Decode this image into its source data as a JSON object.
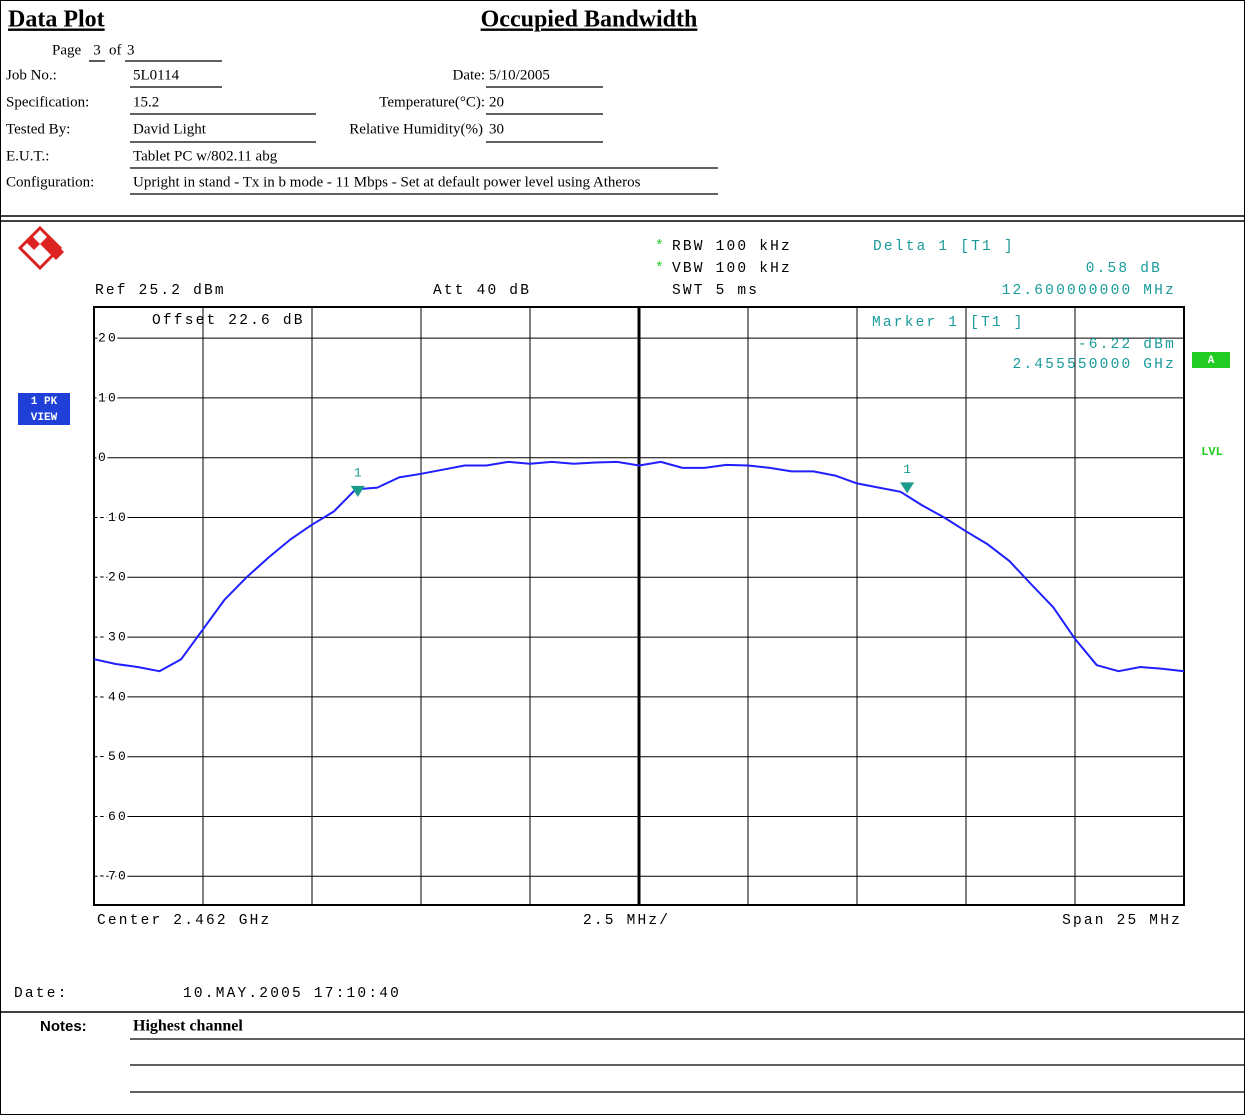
{
  "header": {
    "title": "Data Plot",
    "subtitle": "Occupied Bandwidth",
    "page_label": "Page",
    "page": "3",
    "of_label": "of",
    "pages": "3",
    "job_no": {
      "label": "Job No.:",
      "value": "5L0114"
    },
    "specification": {
      "label": "Specification:",
      "value": "15.2"
    },
    "tested_by": {
      "label": "Tested By:",
      "value": "David Light"
    },
    "eut": {
      "label": "E.U.T.:",
      "value": "Tablet PC w/802.11 abg"
    },
    "configuration": {
      "label": "Configuration:",
      "value": "Upright in stand - Tx in b mode - 11 Mbps - Set at default power level using Atheros"
    },
    "date": {
      "label": "Date:",
      "value": "5/10/2005"
    },
    "temperature": {
      "label": "Temperature(°C):",
      "value": "20"
    },
    "humidity": {
      "label": "Relative Humidity(%)",
      "value": "30"
    }
  },
  "instrument": {
    "star": "*",
    "rbw": "RBW 100 kHz",
    "vbw": "VBW 100 kHz",
    "swt": "SWT 5 ms",
    "ref": "Ref 25.2 dBm",
    "att": "Att 40 dB",
    "offset": "Offset 22.6 dB",
    "delta_title": "Delta 1 [T1 ]",
    "delta_level": "0.58 dB",
    "delta_freq": "12.600000000 MHz",
    "marker_title": "Marker 1 [T1 ]",
    "marker_level": "-6.22 dBm",
    "marker_freq": "2.455550000 GHz",
    "trace_mode": [
      "1 PK",
      "VIEW"
    ],
    "trace_flag": "A",
    "level_flag": "LVL",
    "center": "Center 2.462 GHz",
    "div": "2.5 MHz/",
    "span": "Span 25 MHz",
    "date_label": "Date:",
    "timestamp": "10.MAY.2005 17:10:40"
  },
  "chart_data": {
    "type": "line",
    "x": [
      2.4495,
      2.45,
      2.4505,
      2.451,
      2.4515,
      2.452,
      2.4525,
      2.453,
      2.4535,
      2.454,
      2.4545,
      2.455,
      2.4555,
      2.456,
      2.4565,
      2.457,
      2.4575,
      2.458,
      2.4585,
      2.459,
      2.4595,
      2.46,
      2.4605,
      2.461,
      2.4615,
      2.462,
      2.4625,
      2.463,
      2.4635,
      2.464,
      2.4645,
      2.465,
      2.4655,
      2.466,
      2.4665,
      2.467,
      2.4675,
      2.468,
      2.4685,
      2.469,
      2.4695,
      2.47,
      2.4705,
      2.471,
      2.4715,
      2.472,
      2.4725,
      2.473,
      2.4735,
      2.474,
      2.4745
    ],
    "series": [
      {
        "color": "#1f1fff",
        "values": [
          -33.7,
          -34.5,
          -35,
          -35.7,
          -33.7,
          -28.7,
          -23.7,
          -20,
          -16.7,
          -13.7,
          -11.2,
          -9,
          -5.3,
          -5,
          -3.3,
          -2.7,
          -2,
          -1.3,
          -1.3,
          -0.7,
          -1,
          -0.7,
          -1,
          -0.8,
          -0.7,
          -1.3,
          -0.7,
          -1.7,
          -1.7,
          -1.2,
          -1.3,
          -1.7,
          -2.3,
          -2.3,
          -3,
          -4.3,
          -5,
          -5.7,
          -8,
          -10,
          -12.3,
          -14.5,
          -17.3,
          -21.2,
          -25,
          -30.3,
          -34.7,
          -35.7,
          -35,
          -35.3,
          -35.7
        ]
      }
    ],
    "xlim": [
      2.4495,
      2.4745
    ],
    "ylim": [
      -74.8,
      25.2
    ],
    "xticks": [
      2.4495,
      2.452,
      2.4545,
      2.457,
      2.4595,
      2.462,
      2.4645,
      2.467,
      2.4695,
      2.472,
      2.4745
    ],
    "yticks": [
      20,
      10,
      0,
      -10,
      -20,
      -30,
      -40,
      -50,
      -60,
      -70
    ],
    "grid": true,
    "markers": [
      {
        "label": "1",
        "x": 2.45555,
        "y": -6.22,
        "color": "#1a9a8a"
      },
      {
        "label": "1",
        "x": 2.46815,
        "y": -5.64,
        "color": "#1a9a8a"
      }
    ]
  },
  "notes": {
    "label": "Notes:",
    "text": "Highest channel"
  }
}
